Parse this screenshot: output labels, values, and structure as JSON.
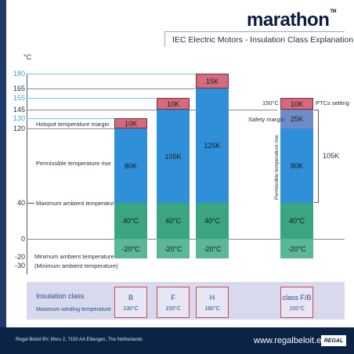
{
  "header": {
    "brand": "marathon",
    "tm": "TM",
    "subtitle": "IEC Electric Motors - Insulation Class Explanation"
  },
  "axis": {
    "unit": "°C",
    "ticks": [
      "180",
      "165",
      "155",
      "145",
      "130",
      "120",
      "40",
      "0",
      "-20",
      "-30"
    ]
  },
  "labels": {
    "hotspot": "Hotspot temperature margin",
    "rise": "Permissible temperature rise",
    "max_ambient": "Maximum ambient temperature",
    "min_ambient": "Minimum ambient temperature",
    "min_ambient_paren": "(Minimum ambient temperature)",
    "ptc_temp": "150°C",
    "ptc_setting": "PTCs setting",
    "safety_margin": "Safety margin",
    "vertical_rise": "Permissible temperature rise",
    "bracket_total": "105K"
  },
  "bars": [
    {
      "name": "B",
      "margin": "10K",
      "rise": "80K",
      "ambient": "40°C",
      "min": "-20°C"
    },
    {
      "name": "F",
      "margin": "10K",
      "rise": "105K",
      "ambient": "40°C",
      "min": "-20°C"
    },
    {
      "name": "H",
      "margin": "15K",
      "rise": "125K",
      "ambient": "40°C",
      "min": "-20°C"
    },
    {
      "name": "class F/B",
      "margin": "10K",
      "safety": "25K",
      "rise": "80K",
      "ambient": "40°C",
      "min": "-20°C"
    }
  ],
  "classes": {
    "title": "Insulation class",
    "subtitle": "Maximum winding temperature",
    "items": [
      {
        "name": "B",
        "temp": "130°C"
      },
      {
        "name": "F",
        "temp": "155°C"
      },
      {
        "name": "H",
        "temp": "180°C"
      },
      {
        "name": "class F/B",
        "temp": "155°C"
      }
    ]
  },
  "footer": {
    "address": "Regal Beloit BV, Mors 2, 7150 AA Eibergen, The Netherlands",
    "url": "www.regalbeloit.eu",
    "logo": "REGAL"
  },
  "colors": {
    "navy": "#0b2344",
    "margin_red": "#d46a7e",
    "rise_blue": "#2f8fd9",
    "ambient_green": "#3aa57f",
    "safety_slate": "#6e8cc8",
    "highlight_cyan": "#2fa9d6"
  }
}
